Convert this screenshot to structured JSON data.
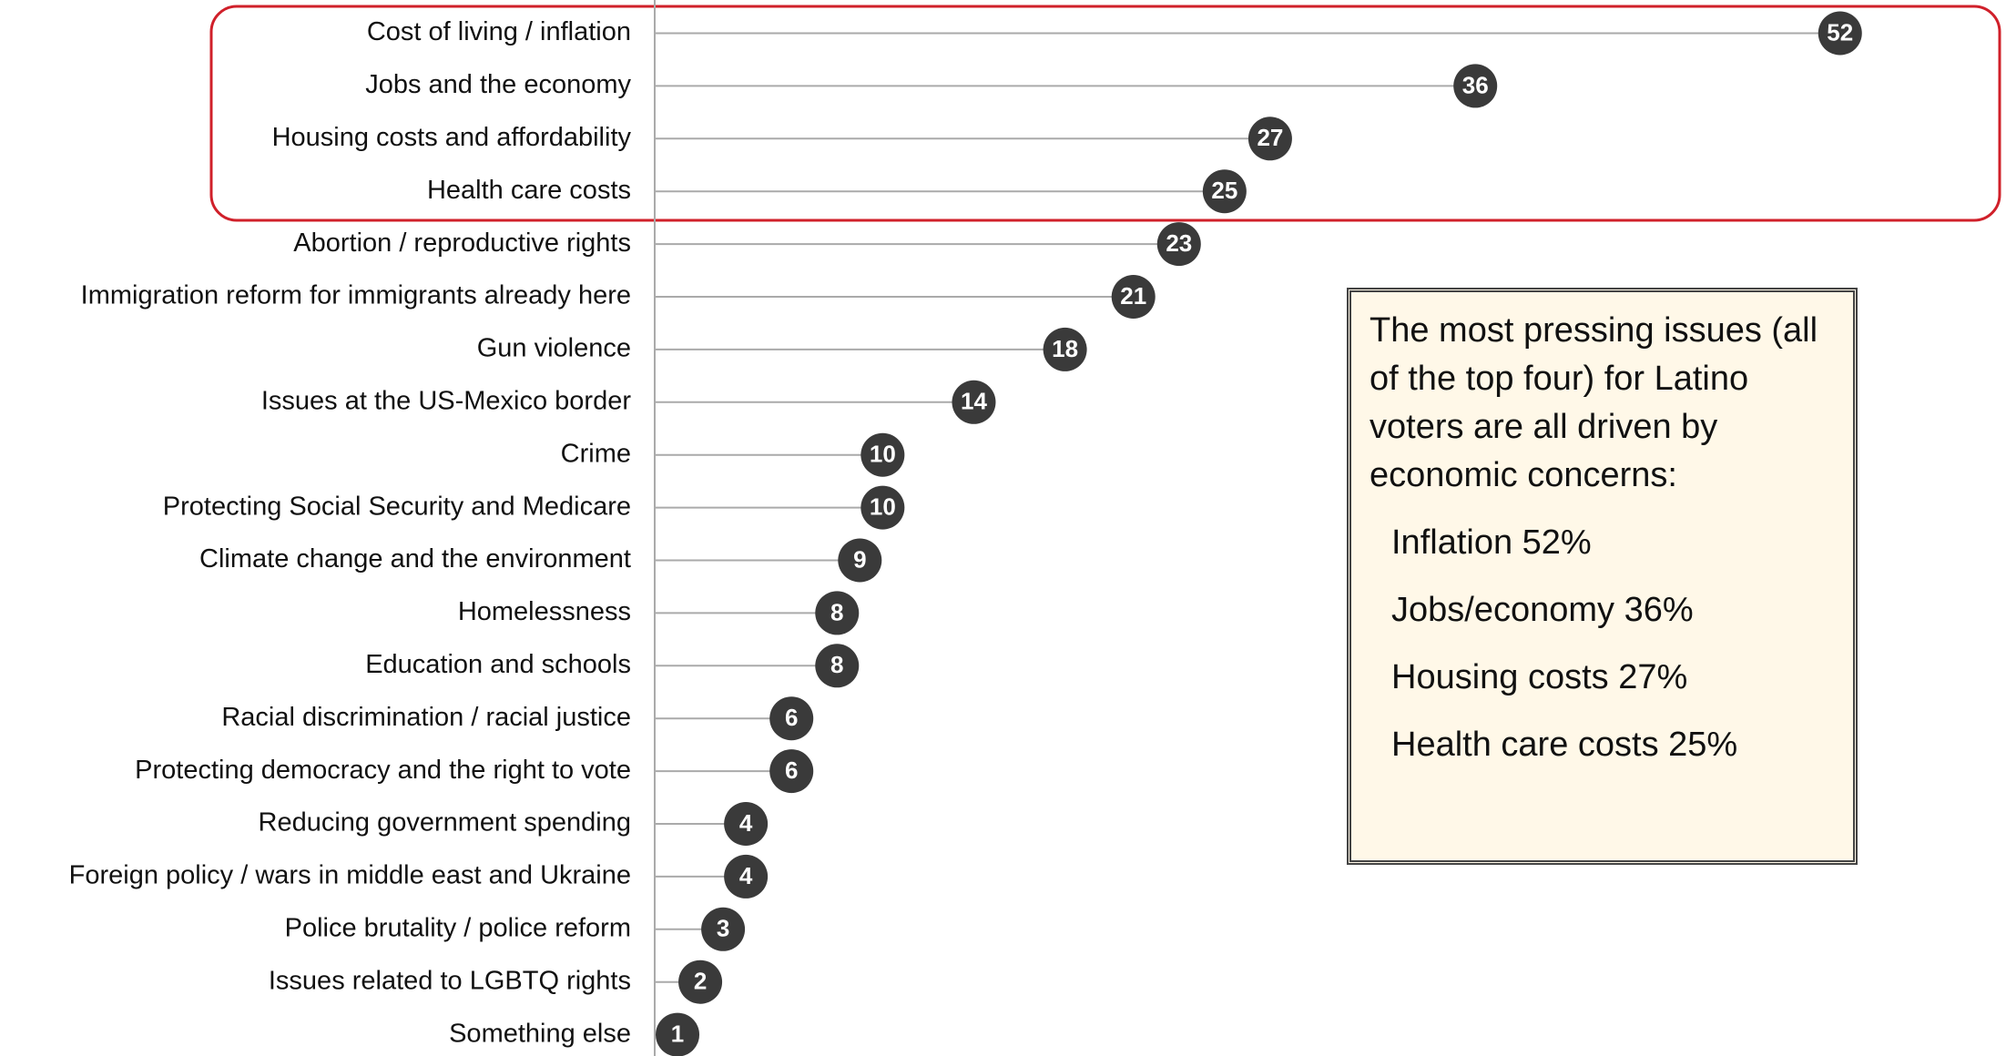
{
  "chart_data": {
    "type": "lollipop",
    "categories": [
      "Cost of living / inflation",
      "Jobs and the economy",
      "Housing costs and affordability",
      "Health care costs",
      "Abortion / reproductive rights",
      "Immigration reform for immigrants already here",
      "Gun violence",
      "Issues at the US-Mexico border",
      "Crime",
      "Protecting Social Security and Medicare",
      "Climate change and the environment",
      "Homelessness",
      "Education and schools",
      "Racial discrimination / racial justice",
      "Protecting democracy and the right to vote",
      "Reducing government spending",
      "Foreign policy / wars in middle east and Ukraine",
      "Police brutality / police reform",
      "Issues related to LGBTQ rights",
      "Something else"
    ],
    "values": [
      52,
      36,
      27,
      25,
      23,
      21,
      18,
      14,
      10,
      10,
      9,
      8,
      8,
      6,
      6,
      4,
      4,
      3,
      2,
      1
    ],
    "color": "#3a3a3a",
    "xlim": [
      0,
      59
    ],
    "annotation": {
      "text": "The most pressing issues (all of the top four) for Latino voters are all driven by economic concerns:",
      "items": [
        "Inflation 52%",
        "Jobs/economy 36%",
        "Housing costs 27%",
        "Health care costs 25%"
      ]
    }
  }
}
